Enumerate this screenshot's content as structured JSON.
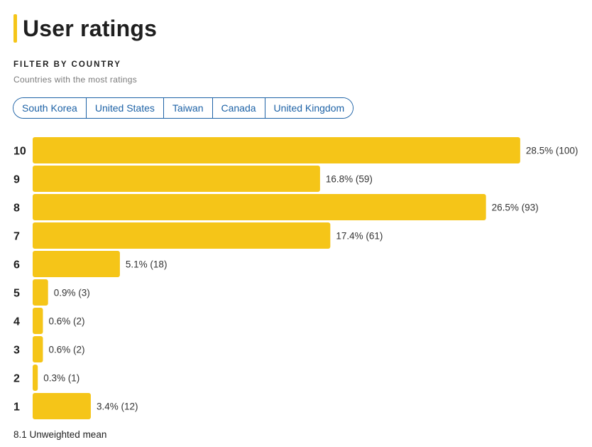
{
  "header": {
    "title": "User ratings"
  },
  "filter": {
    "heading": "FILTER BY COUNTRY",
    "subtitle": "Countries with the most ratings",
    "countries": [
      "South Korea",
      "United States",
      "Taiwan",
      "Canada",
      "United Kingdom"
    ]
  },
  "colors": {
    "accent": "#f5c518",
    "link": "#1d62a6"
  },
  "chart_data": {
    "type": "bar",
    "orientation": "horizontal",
    "title": "User ratings",
    "xlabel": "",
    "ylabel": "",
    "categories": [
      "10",
      "9",
      "8",
      "7",
      "6",
      "5",
      "4",
      "3",
      "2",
      "1"
    ],
    "percentages": [
      28.5,
      16.8,
      26.5,
      17.4,
      5.1,
      0.9,
      0.6,
      0.6,
      0.3,
      3.4
    ],
    "counts": [
      100,
      59,
      93,
      61,
      18,
      3,
      2,
      2,
      1,
      12
    ],
    "value_labels": [
      "28.5% (100)",
      "16.8% (59)",
      "26.5% (93)",
      "17.4% (61)",
      "5.1% (18)",
      "0.9% (3)",
      "0.6% (2)",
      "0.6% (2)",
      "0.3% (1)",
      "3.4% (12)"
    ],
    "xlim": [
      0,
      100
    ],
    "grid": false,
    "legend": "none"
  },
  "footer": {
    "mean_text": "8.1 Unweighted mean"
  }
}
